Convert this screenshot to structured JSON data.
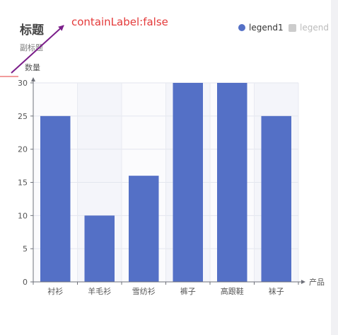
{
  "annotation": "containLabel:false",
  "chart_data": {
    "type": "bar",
    "title": "标题",
    "subtitle": "副标题",
    "ylabel": "数量",
    "xlabel": "产品",
    "categories": [
      "衬衫",
      "羊毛衫",
      "雪纺衫",
      "裤子",
      "高跟鞋",
      "袜子"
    ],
    "series": [
      {
        "name": "legend1",
        "values": [
          25,
          10,
          16,
          30,
          30,
          25
        ],
        "color": "#5470c6"
      }
    ],
    "legend": [
      {
        "name": "legend1",
        "color": "#5470c6",
        "active": true
      },
      {
        "name": "legend",
        "color": "#cccccc",
        "active": false
      }
    ],
    "yticks": [
      0,
      5,
      10,
      15,
      20,
      25,
      30
    ],
    "ylim": [
      0,
      30
    ],
    "legend_position": "top-right",
    "grid": true,
    "split_area": true
  }
}
